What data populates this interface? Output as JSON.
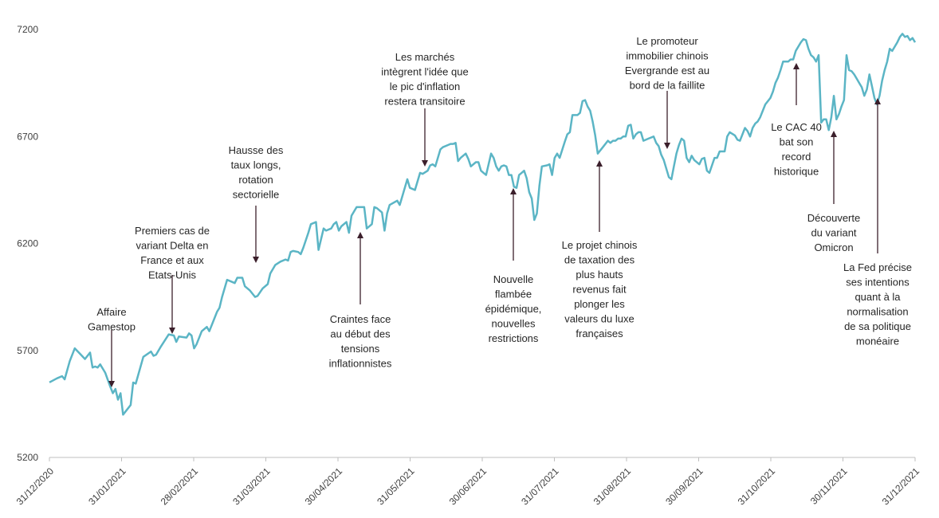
{
  "chart_data": {
    "type": "line",
    "title": "",
    "xlabel": "",
    "ylabel": "",
    "ylim": [
      5200,
      7200
    ],
    "yticks": [
      5200,
      5700,
      6200,
      6700,
      7200
    ],
    "xtick_labels": [
      "31/12/2020",
      "31/01/2021",
      "28/02/2021",
      "31/03/2021",
      "30/04/2021",
      "31/05/2021",
      "30/06/2021",
      "31/07/2021",
      "31/08/2021",
      "30/09/2021",
      "31/10/2021",
      "30/11/2021",
      "31/12/2021"
    ],
    "line_color": "#5bb5c5",
    "annotation_color": "#3b1f2b",
    "series": [
      {
        "name": "CAC 40",
        "points": [
          [
            0,
            5551
          ],
          [
            3,
            5570
          ],
          [
            5,
            5580
          ],
          [
            6,
            5565
          ],
          [
            8,
            5650
          ],
          [
            10,
            5710
          ],
          [
            12,
            5685
          ],
          [
            14,
            5660
          ],
          [
            16,
            5690
          ],
          [
            17,
            5620
          ],
          [
            18,
            5625
          ],
          [
            19,
            5620
          ],
          [
            20,
            5635
          ],
          [
            22,
            5595
          ],
          [
            24,
            5530
          ],
          [
            25,
            5500
          ],
          [
            26,
            5520
          ],
          [
            27,
            5470
          ],
          [
            28,
            5500
          ],
          [
            29,
            5400
          ],
          [
            32,
            5445
          ],
          [
            33,
            5550
          ],
          [
            34,
            5545
          ],
          [
            37,
            5670
          ],
          [
            40,
            5695
          ],
          [
            41,
            5675
          ],
          [
            42,
            5680
          ],
          [
            44,
            5720
          ],
          [
            47,
            5775
          ],
          [
            49,
            5770
          ],
          [
            50,
            5740
          ],
          [
            51,
            5765
          ],
          [
            54,
            5760
          ],
          [
            55,
            5780
          ],
          [
            56,
            5770
          ],
          [
            57,
            5710
          ],
          [
            58,
            5730
          ],
          [
            60,
            5790
          ],
          [
            62,
            5810
          ],
          [
            63,
            5790
          ],
          [
            65,
            5850
          ],
          [
            66,
            5880
          ],
          [
            67,
            5900
          ],
          [
            68,
            5950
          ],
          [
            70,
            6030
          ],
          [
            72,
            6020
          ],
          [
            73,
            6015
          ],
          [
            74,
            6040
          ],
          [
            76,
            6040
          ],
          [
            77,
            6000
          ],
          [
            79,
            5980
          ],
          [
            81,
            5950
          ],
          [
            82,
            5955
          ],
          [
            84,
            5990
          ],
          [
            86,
            6010
          ],
          [
            87,
            6060
          ],
          [
            89,
            6100
          ],
          [
            91,
            6115
          ],
          [
            93,
            6125
          ],
          [
            94,
            6120
          ],
          [
            95,
            6160
          ],
          [
            96,
            6165
          ],
          [
            98,
            6160
          ],
          [
            99,
            6150
          ],
          [
            100,
            6180
          ],
          [
            102,
            6250
          ],
          [
            103,
            6290
          ],
          [
            105,
            6300
          ],
          [
            106,
            6170
          ],
          [
            107,
            6220
          ],
          [
            108,
            6270
          ],
          [
            109,
            6260
          ],
          [
            111,
            6270
          ],
          [
            112,
            6290
          ],
          [
            113,
            6300
          ],
          [
            114,
            6260
          ],
          [
            115,
            6280
          ],
          [
            117,
            6300
          ],
          [
            118,
            6250
          ],
          [
            119,
            6330
          ],
          [
            121,
            6370
          ],
          [
            124,
            6370
          ],
          [
            125,
            6270
          ],
          [
            127,
            6290
          ],
          [
            128,
            6370
          ],
          [
            129,
            6365
          ],
          [
            131,
            6345
          ],
          [
            132,
            6260
          ],
          [
            133,
            6340
          ],
          [
            134,
            6380
          ],
          [
            137,
            6400
          ],
          [
            138,
            6380
          ],
          [
            139,
            6420
          ],
          [
            141,
            6500
          ],
          [
            142,
            6460
          ],
          [
            144,
            6450
          ],
          [
            146,
            6530
          ],
          [
            147,
            6525
          ],
          [
            149,
            6540
          ],
          [
            150,
            6565
          ],
          [
            151,
            6570
          ],
          [
            152,
            6560
          ],
          [
            154,
            6640
          ],
          [
            155,
            6650
          ],
          [
            157,
            6660
          ],
          [
            158,
            6665
          ],
          [
            159,
            6665
          ],
          [
            160,
            6670
          ],
          [
            161,
            6585
          ],
          [
            162,
            6600
          ],
          [
            164,
            6620
          ],
          [
            165,
            6595
          ],
          [
            166,
            6560
          ],
          [
            168,
            6580
          ],
          [
            169,
            6580
          ],
          [
            170,
            6540
          ],
          [
            171,
            6530
          ],
          [
            172,
            6520
          ],
          [
            174,
            6620
          ],
          [
            175,
            6600
          ],
          [
            176,
            6560
          ],
          [
            177,
            6540
          ],
          [
            178,
            6560
          ],
          [
            179,
            6565
          ],
          [
            180,
            6560
          ],
          [
            181,
            6520
          ],
          [
            182,
            6520
          ],
          [
            183,
            6465
          ],
          [
            184,
            6460
          ],
          [
            185,
            6520
          ],
          [
            186,
            6530
          ],
          [
            187,
            6540
          ],
          [
            188,
            6505
          ],
          [
            189,
            6440
          ],
          [
            190,
            6410
          ],
          [
            191,
            6310
          ],
          [
            192,
            6340
          ],
          [
            193,
            6470
          ],
          [
            194,
            6560
          ],
          [
            196,
            6565
          ],
          [
            197,
            6570
          ],
          [
            198,
            6520
          ],
          [
            199,
            6600
          ],
          [
            200,
            6620
          ],
          [
            201,
            6600
          ],
          [
            203,
            6675
          ],
          [
            204,
            6710
          ],
          [
            205,
            6720
          ],
          [
            206,
            6800
          ],
          [
            208,
            6800
          ],
          [
            209,
            6810
          ],
          [
            210,
            6865
          ],
          [
            211,
            6870
          ],
          [
            212,
            6840
          ],
          [
            213,
            6820
          ],
          [
            214,
            6770
          ],
          [
            215,
            6705
          ],
          [
            216,
            6620
          ],
          [
            218,
            6650
          ],
          [
            220,
            6680
          ],
          [
            221,
            6670
          ],
          [
            222,
            6680
          ],
          [
            223,
            6680
          ],
          [
            224,
            6690
          ],
          [
            225,
            6690
          ],
          [
            226,
            6700
          ],
          [
            227,
            6700
          ],
          [
            228,
            6750
          ],
          [
            229,
            6755
          ],
          [
            230,
            6690
          ],
          [
            231,
            6710
          ],
          [
            232,
            6720
          ],
          [
            233,
            6720
          ],
          [
            234,
            6680
          ],
          [
            236,
            6690
          ],
          [
            238,
            6700
          ],
          [
            239,
            6670
          ],
          [
            240,
            6655
          ],
          [
            241,
            6615
          ],
          [
            242,
            6590
          ],
          [
            244,
            6510
          ],
          [
            245,
            6500
          ],
          [
            246,
            6560
          ],
          [
            247,
            6620
          ],
          [
            248,
            6660
          ],
          [
            249,
            6690
          ],
          [
            250,
            6680
          ],
          [
            251,
            6600
          ],
          [
            252,
            6580
          ],
          [
            253,
            6610
          ],
          [
            254,
            6590
          ],
          [
            256,
            6570
          ],
          [
            257,
            6595
          ],
          [
            258,
            6600
          ],
          [
            259,
            6540
          ],
          [
            260,
            6530
          ],
          [
            262,
            6600
          ],
          [
            263,
            6600
          ],
          [
            264,
            6630
          ],
          [
            266,
            6630
          ],
          [
            267,
            6700
          ],
          [
            268,
            6720
          ],
          [
            270,
            6705
          ],
          [
            271,
            6685
          ],
          [
            272,
            6680
          ],
          [
            274,
            6740
          ],
          [
            275,
            6725
          ],
          [
            276,
            6700
          ],
          [
            277,
            6740
          ],
          [
            278,
            6760
          ],
          [
            279,
            6770
          ],
          [
            280,
            6790
          ],
          [
            281,
            6820
          ],
          [
            282,
            6850
          ],
          [
            284,
            6880
          ],
          [
            285,
            6910
          ],
          [
            286,
            6950
          ],
          [
            287,
            6975
          ],
          [
            288,
            7010
          ],
          [
            289,
            7050
          ],
          [
            290,
            7050
          ],
          [
            291,
            7050
          ],
          [
            292,
            7060
          ],
          [
            293,
            7060
          ],
          [
            294,
            7100
          ],
          [
            295,
            7120
          ],
          [
            296,
            7140
          ],
          [
            297,
            7155
          ],
          [
            298,
            7150
          ],
          [
            299,
            7110
          ],
          [
            300,
            7080
          ],
          [
            301,
            7070
          ],
          [
            302,
            7050
          ],
          [
            303,
            7080
          ],
          [
            304,
            6765
          ],
          [
            305,
            6780
          ],
          [
            306,
            6780
          ],
          [
            307,
            6730
          ],
          [
            308,
            6790
          ],
          [
            309,
            6890
          ],
          [
            310,
            6780
          ],
          [
            311,
            6805
          ],
          [
            312,
            6840
          ],
          [
            313,
            6870
          ],
          [
            314,
            7080
          ],
          [
            315,
            7010
          ],
          [
            316,
            7005
          ],
          [
            317,
            6990
          ],
          [
            318,
            6970
          ],
          [
            319,
            6950
          ],
          [
            320,
            6930
          ],
          [
            321,
            6890
          ],
          [
            322,
            6920
          ],
          [
            323,
            6990
          ],
          [
            324,
            6935
          ],
          [
            325,
            6880
          ],
          [
            326,
            6850
          ],
          [
            327,
            6890
          ],
          [
            328,
            6960
          ],
          [
            329,
            7010
          ],
          [
            330,
            7050
          ],
          [
            331,
            7110
          ],
          [
            332,
            7100
          ],
          [
            333,
            7120
          ],
          [
            334,
            7140
          ],
          [
            335,
            7165
          ],
          [
            336,
            7180
          ],
          [
            337,
            7165
          ],
          [
            338,
            7170
          ],
          [
            339,
            7150
          ],
          [
            340,
            7160
          ],
          [
            341,
            7140
          ]
        ]
      }
    ],
    "annotations": [
      {
        "id": "gamestop",
        "lines": [
          "Affaire",
          "Gamestop"
        ],
        "x": 24,
        "value": 5490,
        "dir": "up"
      },
      {
        "id": "delta",
        "lines": [
          "Premiers cas de",
          "variant Delta en",
          "France et aux",
          "Etats-Unis"
        ],
        "x": 49,
        "value": 5792,
        "dir": "up"
      },
      {
        "id": "taux",
        "lines": [
          "Hausse des",
          "taux longs,",
          "rotation",
          "sectorielle"
        ],
        "x": 82,
        "value": 6120,
        "dir": "down"
      },
      {
        "id": "craintes",
        "lines": [
          "Craintes face",
          "au début des",
          "tensions",
          "inflationnistes"
        ],
        "x": 123,
        "value": 6250,
        "dir": "up"
      },
      {
        "id": "transitoire",
        "lines": [
          "Les marchés",
          "intègrent l'idée que",
          "le pic d'inflation",
          "restera transitoire"
        ],
        "x": 148,
        "value": 6555,
        "dir": "down"
      },
      {
        "id": "flambee",
        "lines": [
          "Nouvelle",
          "flambée",
          "épidémique,",
          "nouvelles",
          "restrictions"
        ],
        "x": 183,
        "value": 6455,
        "dir": "up"
      },
      {
        "id": "luxe",
        "lines": [
          "Le projet chinois",
          "de taxation des",
          "plus hauts",
          "revenus fait",
          "plonger les",
          "valeurs du luxe",
          "françaises"
        ],
        "x": 216,
        "value": 6585,
        "dir": "up"
      },
      {
        "id": "evergrande",
        "lines": [
          "Le promoteur",
          "immobilier chinois",
          "Evergrande est au",
          "bord de la faillite"
        ],
        "x": 237,
        "value": 6675,
        "dir": "down"
      },
      {
        "id": "record",
        "lines": [
          "Le CAC 40",
          "bat son",
          "record",
          "historique"
        ],
        "x": 295,
        "value": 7045,
        "dir": "up"
      },
      {
        "id": "omicron",
        "lines": [
          "Découverte",
          "du variant",
          "Omicron"
        ],
        "x": 304,
        "value": 6720,
        "dir": "up"
      },
      {
        "id": "fed",
        "lines": [
          "La Fed précise",
          "ses intentions",
          "quant à la",
          "normalisation",
          "de sa politique",
          "monéaire"
        ],
        "x": 325,
        "value": 6870,
        "dir": "up"
      }
    ]
  }
}
